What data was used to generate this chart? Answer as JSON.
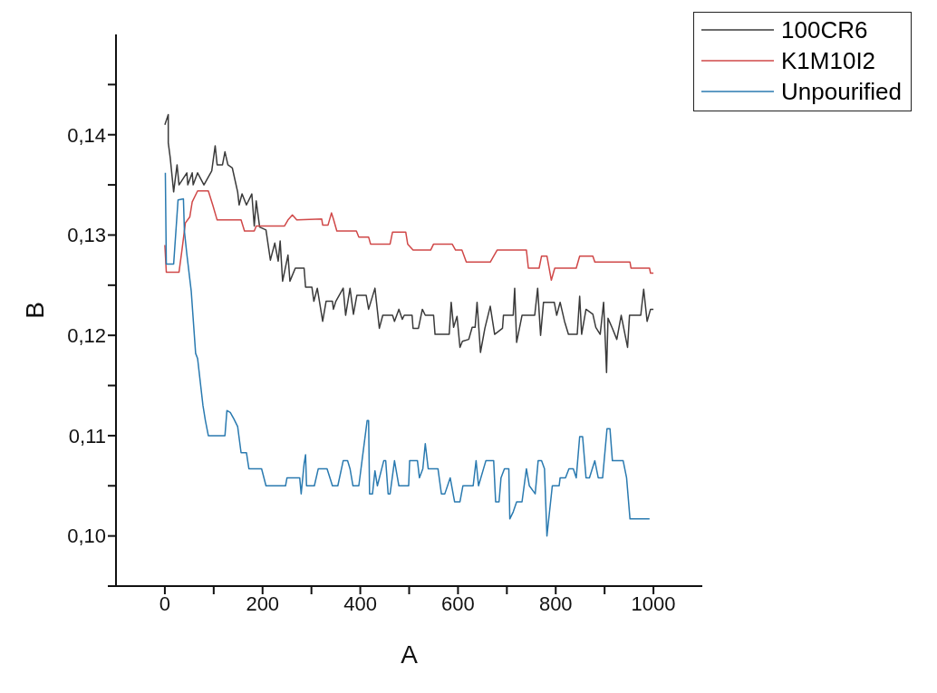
{
  "chart_data": {
    "type": "line",
    "xlabel": "A",
    "ylabel": "B",
    "xlim": [
      -100,
      1100
    ],
    "xticks": [
      0,
      {
        "value": 100,
        "label": null
      },
      200,
      {
        "value": 300,
        "label": null
      },
      400,
      {
        "value": 500,
        "label": null
      },
      600,
      {
        "value": 700,
        "label": null
      },
      800,
      {
        "value": 900,
        "label": null
      },
      1000
    ],
    "ylim": [
      0.095,
      0.15
    ],
    "yticks": [
      {
        "value": 0.095,
        "label": null
      },
      {
        "value": 0.1,
        "label": "0,10"
      },
      {
        "value": 0.105,
        "label": null
      },
      {
        "value": 0.11,
        "label": "0,11"
      },
      {
        "value": 0.115,
        "label": null
      },
      {
        "value": 0.12,
        "label": "0,12"
      },
      {
        "value": 0.125,
        "label": null
      },
      {
        "value": 0.13,
        "label": "0,13"
      },
      {
        "value": 0.135,
        "label": null
      },
      {
        "value": 0.14,
        "label": "0,14"
      },
      {
        "value": 0.145,
        "label": null
      }
    ],
    "grid": false,
    "legend": "top right",
    "marker": "none",
    "line_style": "solid",
    "series": [
      {
        "name": "100CR6",
        "color": "#3a3a3a",
        "x": [
          0,
          7,
          7,
          11,
          18,
          25,
          29,
          45,
          47,
          56,
          58,
          67,
          80,
          96,
          103,
          107,
          118,
          123,
          129,
          138,
          149,
          152,
          158,
          167,
          178,
          183,
          187,
          194,
          207,
          216,
          225,
          232,
          236,
          241,
          252,
          256,
          267,
          285,
          288,
          301,
          305,
          312,
          323,
          330,
          343,
          345,
          350,
          365,
          370,
          379,
          386,
          393,
          412,
          417,
          430,
          439,
          446,
          466,
          470,
          479,
          486,
          490,
          506,
          508,
          519,
          527,
          533,
          550,
          553,
          582,
          586,
          591,
          598,
          604,
          609,
          622,
          629,
          635,
          639,
          646,
          655,
          666,
          675,
          691,
          693,
          713,
          716,
          720,
          731,
          757,
          763,
          769,
          775,
          797,
          802,
          809,
          818,
          826,
          844,
          849,
          853,
          862,
          876,
          882,
          891,
          898,
          902,
          904,
          907,
          916,
          925,
          934,
          947,
          951,
          974,
          980,
          987,
          994,
          1000
        ],
        "values": [
          0.141,
          0.142,
          0.1392,
          0.1377,
          0.1343,
          0.137,
          0.135,
          0.1362,
          0.135,
          0.1362,
          0.135,
          0.1362,
          0.135,
          0.1364,
          0.1389,
          0.137,
          0.137,
          0.1383,
          0.137,
          0.1367,
          0.1343,
          0.133,
          0.1341,
          0.133,
          0.1341,
          0.1309,
          0.1334,
          0.1308,
          0.1305,
          0.1275,
          0.1292,
          0.1274,
          0.1294,
          0.1254,
          0.128,
          0.1254,
          0.1267,
          0.1267,
          0.1248,
          0.1248,
          0.1234,
          0.1247,
          0.1214,
          0.1234,
          0.1234,
          0.1226,
          0.1234,
          0.1247,
          0.122,
          0.1247,
          0.1221,
          0.124,
          0.124,
          0.1226,
          0.1247,
          0.1207,
          0.122,
          0.122,
          0.1214,
          0.1226,
          0.1216,
          0.122,
          0.122,
          0.1207,
          0.1207,
          0.1226,
          0.122,
          0.122,
          0.1201,
          0.1201,
          0.1233,
          0.1208,
          0.1219,
          0.1188,
          0.1194,
          0.1196,
          0.1208,
          0.1208,
          0.1233,
          0.1183,
          0.1207,
          0.1229,
          0.1201,
          0.1207,
          0.122,
          0.122,
          0.1247,
          0.1193,
          0.122,
          0.122,
          0.1247,
          0.12,
          0.1233,
          0.1233,
          0.122,
          0.1233,
          0.1214,
          0.1201,
          0.1201,
          0.1239,
          0.1201,
          0.1226,
          0.1221,
          0.1208,
          0.1201,
          0.1233,
          0.1188,
          0.1163,
          0.1217,
          0.1207,
          0.1196,
          0.122,
          0.1188,
          0.122,
          0.122,
          0.1246,
          0.1214,
          0.1226,
          0.1226
        ]
      },
      {
        "name": "K1M10I2",
        "color": "#d04848",
        "x": [
          0,
          3,
          29,
          35,
          42,
          51,
          56,
          67,
          89,
          98,
          107,
          156,
          163,
          183,
          187,
          245,
          252,
          261,
          270,
          321,
          323,
          334,
          341,
          345,
          352,
          392,
          397,
          417,
          421,
          461,
          466,
          493,
          497,
          508,
          544,
          550,
          588,
          595,
          608,
          617,
          666,
          680,
          740,
          744,
          766,
          771,
          782,
          791,
          798,
          842,
          849,
          876,
          880,
          952,
          954,
          992,
          994,
          1000
        ],
        "values": [
          0.129,
          0.1263,
          0.1263,
          0.1285,
          0.1312,
          0.1318,
          0.1333,
          0.1344,
          0.1344,
          0.133,
          0.1315,
          0.1315,
          0.1304,
          0.1304,
          0.1309,
          0.1309,
          0.1315,
          0.132,
          0.1315,
          0.1316,
          0.131,
          0.131,
          0.1322,
          0.1316,
          0.1304,
          0.1304,
          0.1298,
          0.1298,
          0.1291,
          0.1291,
          0.1303,
          0.1303,
          0.1291,
          0.1285,
          0.1285,
          0.1291,
          0.1291,
          0.1285,
          0.1285,
          0.1273,
          0.1273,
          0.1285,
          0.1285,
          0.1267,
          0.1267,
          0.1279,
          0.1279,
          0.1255,
          0.1267,
          0.1267,
          0.1279,
          0.1279,
          0.1273,
          0.1273,
          0.1267,
          0.1267,
          0.1262,
          0.1262
        ]
      },
      {
        "name": "Unpourified",
        "color": "#2a7ab0",
        "x": [
          1,
          3,
          18,
          27,
          38,
          40,
          45,
          54,
          63,
          67,
          78,
          83,
          89,
          123,
          127,
          134,
          141,
          149,
          156,
          167,
          172,
          198,
          207,
          247,
          250,
          276,
          279,
          285,
          288,
          290,
          306,
          314,
          332,
          343,
          354,
          365,
          374,
          379,
          385,
          397,
          414,
          417,
          419,
          425,
          430,
          435,
          448,
          452,
          457,
          461,
          470,
          479,
          499,
          501,
          517,
          521,
          528,
          533,
          539,
          559,
          566,
          573,
          584,
          593,
          604,
          610,
          631,
          637,
          642,
          657,
          673,
          677,
          684,
          688,
          695,
          704,
          706,
          713,
          720,
          731,
          740,
          746,
          758,
          764,
          771,
          777,
          782,
          793,
          807,
          809,
          820,
          827,
          836,
          842,
          849,
          855,
          862,
          869,
          880,
          887,
          896,
          905,
          911,
          916,
          938,
          945,
          952,
          992
        ],
        "values": [
          0.1362,
          0.1271,
          0.1271,
          0.1335,
          0.1336,
          0.1304,
          0.1281,
          0.1244,
          0.1182,
          0.1177,
          0.113,
          0.1115,
          0.11,
          0.11,
          0.1125,
          0.1123,
          0.1117,
          0.1109,
          0.1083,
          0.1083,
          0.1067,
          0.1067,
          0.105,
          0.105,
          0.1058,
          0.1058,
          0.1042,
          0.1072,
          0.1081,
          0.105,
          0.105,
          0.1067,
          0.1067,
          0.105,
          0.105,
          0.1075,
          0.1075,
          0.1067,
          0.105,
          0.105,
          0.1115,
          0.1115,
          0.1042,
          0.1042,
          0.1065,
          0.105,
          0.1075,
          0.1075,
          0.1042,
          0.1042,
          0.1075,
          0.105,
          0.105,
          0.1075,
          0.1075,
          0.1058,
          0.1067,
          0.1092,
          0.1067,
          0.1067,
          0.1042,
          0.1042,
          0.1058,
          0.1034,
          0.1034,
          0.105,
          0.105,
          0.1075,
          0.105,
          0.1075,
          0.1075,
          0.1034,
          0.1034,
          0.1058,
          0.1067,
          0.1067,
          0.1017,
          0.1024,
          0.1034,
          0.1034,
          0.1067,
          0.105,
          0.1042,
          0.1075,
          0.1075,
          0.1067,
          0.1,
          0.105,
          0.105,
          0.1058,
          0.1058,
          0.1067,
          0.1067,
          0.1058,
          0.1099,
          0.1099,
          0.1058,
          0.1058,
          0.1075,
          0.1058,
          0.1058,
          0.1107,
          0.1107,
          0.1075,
          0.1075,
          0.1058,
          0.1017,
          0.1017
        ]
      }
    ]
  }
}
